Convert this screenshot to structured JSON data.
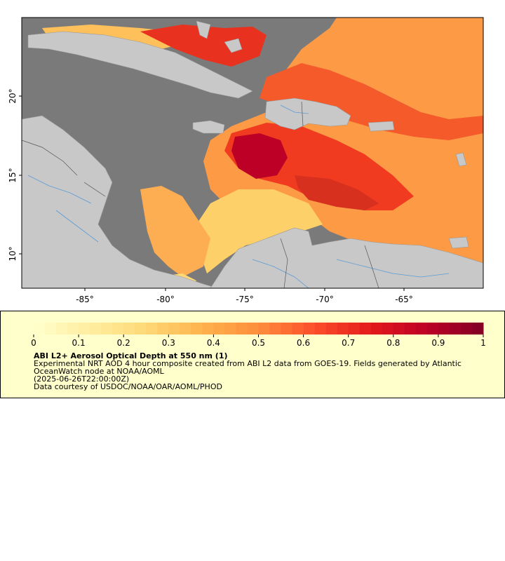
{
  "map": {
    "lat_labels": [
      "20°",
      "15°",
      "10°"
    ],
    "lon_labels": [
      "-85°",
      "-80°",
      "-75°",
      "-70°",
      "-65°"
    ],
    "colors": {
      "ocean": "#7a7a7a",
      "land": "#c8c8c8",
      "river": "#5b9bd5",
      "border": "#888888",
      "frame": "#000000"
    }
  },
  "legend": {
    "ticks": [
      "0",
      "0.1",
      "0.2",
      "0.3",
      "0.4",
      "0.5",
      "0.6",
      "0.7",
      "0.8",
      "0.9",
      "1"
    ],
    "range": [
      0,
      1
    ],
    "colorscale": [
      "#ffffcc",
      "#ffeda0",
      "#fed976",
      "#feb24c",
      "#fd8d3c",
      "#fc4e2a",
      "#e31a1c",
      "#bd0026",
      "#800026"
    ],
    "title": "ABI L2+ Aerosol Optical Depth at 550 nm (1)",
    "line1": "Experimental NRT AOD 4 hour composite created from ABI L2 data from GOES-19. Fields generated by Atlantic",
    "line2": "OceanWatch node at NOAA/AOML",
    "line3": "(2025-06-26T22:00:00Z)",
    "line4": "Data courtesy of USDOC/NOAA/OAR/AOML/PHOD"
  }
}
